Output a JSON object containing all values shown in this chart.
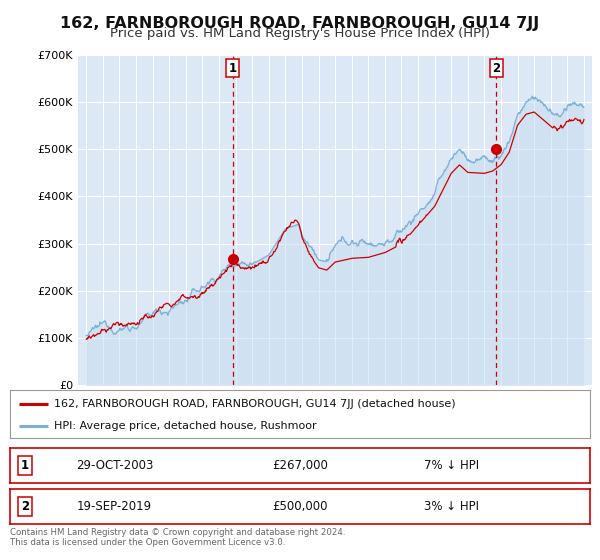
{
  "title": "162, FARNBOROUGH ROAD, FARNBOROUGH, GU14 7JJ",
  "subtitle": "Price paid vs. HM Land Registry's House Price Index (HPI)",
  "title_fontsize": 11.5,
  "subtitle_fontsize": 9.5,
  "background_color": "#ffffff",
  "plot_bg_color": "#dce8f5",
  "grid_color": "#ffffff",
  "hpi_color": "#7ab0d8",
  "price_color": "#cc0000",
  "marker1_date": 2003.83,
  "marker1_value": 267000,
  "marker2_date": 2019.72,
  "marker2_value": 500000,
  "vline_color": "#cc0000",
  "ylim_min": 0,
  "ylim_max": 700000,
  "yticks": [
    0,
    100000,
    200000,
    300000,
    400000,
    500000,
    600000,
    700000
  ],
  "ytick_labels": [
    "£0",
    "£100K",
    "£200K",
    "£300K",
    "£400K",
    "£500K",
    "£600K",
    "£700K"
  ],
  "xlim_min": 1994.5,
  "xlim_max": 2025.5,
  "xticks": [
    1995,
    1996,
    1997,
    1998,
    1999,
    2000,
    2001,
    2002,
    2003,
    2004,
    2005,
    2006,
    2007,
    2008,
    2009,
    2010,
    2011,
    2012,
    2013,
    2014,
    2015,
    2016,
    2017,
    2018,
    2019,
    2020,
    2021,
    2022,
    2023,
    2024,
    2025
  ],
  "legend_label_price": "162, FARNBOROUGH ROAD, FARNBOROUGH, GU14 7JJ (detached house)",
  "legend_label_hpi": "HPI: Average price, detached house, Rushmoor",
  "table_row1": [
    "1",
    "29-OCT-2003",
    "£267,000",
    "7% ↓ HPI"
  ],
  "table_row2": [
    "2",
    "19-SEP-2019",
    "£500,000",
    "3% ↓ HPI"
  ],
  "footnote": "Contains HM Land Registry data © Crown copyright and database right 2024.\nThis data is licensed under the Open Government Licence v3.0."
}
